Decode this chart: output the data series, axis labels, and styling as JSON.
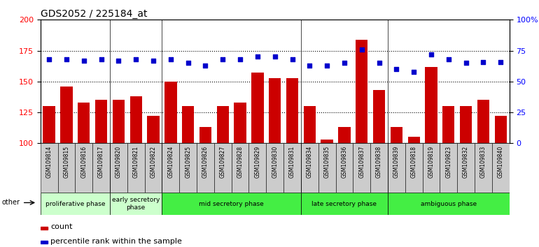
{
  "title": "GDS2052 / 225184_at",
  "samples": [
    "GSM109814",
    "GSM109815",
    "GSM109816",
    "GSM109817",
    "GSM109820",
    "GSM109821",
    "GSM109822",
    "GSM109824",
    "GSM109825",
    "GSM109826",
    "GSM109827",
    "GSM109828",
    "GSM109829",
    "GSM109830",
    "GSM109831",
    "GSM109834",
    "GSM109835",
    "GSM109836",
    "GSM109837",
    "GSM109838",
    "GSM109839",
    "GSM109818",
    "GSM109819",
    "GSM109823",
    "GSM109832",
    "GSM109833",
    "GSM109840"
  ],
  "counts": [
    130,
    146,
    133,
    135,
    135,
    138,
    122,
    150,
    130,
    113,
    130,
    133,
    157,
    153,
    153,
    130,
    103,
    113,
    184,
    143,
    113,
    105,
    162,
    130,
    130,
    135,
    122
  ],
  "percentiles": [
    68,
    68,
    67,
    68,
    67,
    68,
    67,
    68,
    65,
    63,
    68,
    68,
    70,
    70,
    68,
    63,
    63,
    65,
    76,
    65,
    60,
    58,
    72,
    68,
    65,
    66,
    66
  ],
  "phases": [
    {
      "label": "proliferative phase",
      "start": 0,
      "end": 4,
      "color": "#ccffcc"
    },
    {
      "label": "early secretory\nphase",
      "start": 4,
      "end": 7,
      "color": "#ccffcc"
    },
    {
      "label": "mid secretory phase",
      "start": 7,
      "end": 15,
      "color": "#44ee44"
    },
    {
      "label": "late secretory phase",
      "start": 15,
      "end": 20,
      "color": "#44ee44"
    },
    {
      "label": "ambiguous phase",
      "start": 20,
      "end": 27,
      "color": "#44ee44"
    }
  ],
  "bar_color": "#cc0000",
  "dot_color": "#0000cc",
  "ylim_left": [
    100,
    200
  ],
  "ylim_right": [
    0,
    100
  ],
  "yticks_left": [
    100,
    125,
    150,
    175,
    200
  ],
  "yticks_right": [
    0,
    25,
    50,
    75,
    100
  ],
  "dotted_lines": [
    125,
    150,
    175
  ],
  "plot_bg": "#ffffff",
  "tick_bg": "#d0d0d0",
  "other_label": "other"
}
